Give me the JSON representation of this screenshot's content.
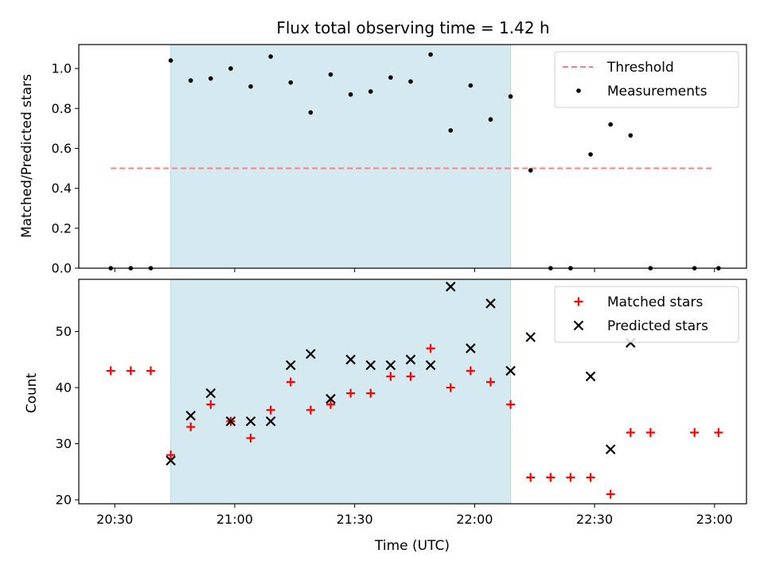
{
  "chart_data": [
    {
      "type": "scatter",
      "title": "Flux total observing time = 1.42 h",
      "xlabel": "",
      "ylabel": "Matched/Predicted stars",
      "ylim": [
        0,
        1.12
      ],
      "yticks": [
        0.0,
        0.2,
        0.4,
        0.6,
        0.8,
        1.0
      ],
      "ytick_labels": [
        "0.0",
        "0.2",
        "0.4",
        "0.6",
        "0.8",
        "1.0"
      ],
      "xlim": [
        "20:21",
        "23:08"
      ],
      "legend_position": "top-right",
      "shaded_interval": {
        "start": "20:44",
        "end": "22:09",
        "color": "#d4eaf0"
      },
      "series": [
        {
          "name": "Threshold",
          "kind": "line",
          "style": "dashed",
          "color": "#ff7f7f",
          "x": [
            "20:29",
            "23:00"
          ],
          "y": [
            0.5,
            0.5
          ]
        },
        {
          "name": "Measurements",
          "kind": "scatter",
          "marker": "dot",
          "color": "#000000",
          "x": [
            "20:29",
            "20:34",
            "20:39",
            "20:44",
            "20:49",
            "20:54",
            "20:59",
            "21:04",
            "21:09",
            "21:14",
            "21:19",
            "21:24",
            "21:29",
            "21:34",
            "21:39",
            "21:44",
            "21:49",
            "21:54",
            "21:59",
            "22:04",
            "22:09",
            "22:14",
            "22:19",
            "22:24",
            "22:29",
            "22:34",
            "22:39",
            "22:44",
            "22:55",
            "23:01"
          ],
          "y": [
            0.0,
            0.0,
            0.0,
            1.04,
            0.94,
            0.95,
            1.0,
            0.91,
            1.06,
            0.93,
            0.78,
            0.97,
            0.87,
            0.885,
            0.955,
            0.935,
            1.07,
            0.69,
            0.915,
            0.745,
            0.86,
            0.49,
            0.0,
            0.0,
            0.57,
            0.72,
            0.665,
            0.0,
            0.0,
            0.0
          ]
        }
      ]
    },
    {
      "type": "scatter",
      "title": "",
      "xlabel": "Time (UTC)",
      "ylabel": "Count",
      "ylim": [
        19.3,
        59.3
      ],
      "yticks": [
        20,
        30,
        40,
        50
      ],
      "ytick_labels": [
        "20",
        "30",
        "40",
        "50"
      ],
      "xlim": [
        "20:21",
        "23:08"
      ],
      "xticks": [
        "20:30",
        "21:00",
        "21:30",
        "22:00",
        "22:30",
        "23:00"
      ],
      "xtick_labels": [
        "20:30",
        "21:00",
        "21:30",
        "22:00",
        "22:30",
        "23:00"
      ],
      "legend_position": "top-right",
      "shaded_interval": {
        "start": "20:44",
        "end": "22:09",
        "color": "#d4eaf0"
      },
      "series": [
        {
          "name": "Matched stars",
          "kind": "scatter",
          "marker": "plus",
          "color": "#ff0000",
          "x": [
            "20:29",
            "20:34",
            "20:39",
            "20:44",
            "20:49",
            "20:54",
            "20:59",
            "21:04",
            "21:09",
            "21:14",
            "21:19",
            "21:24",
            "21:29",
            "21:34",
            "21:39",
            "21:44",
            "21:49",
            "21:54",
            "21:59",
            "22:04",
            "22:09",
            "22:14",
            "22:19",
            "22:24",
            "22:29",
            "22:34",
            "22:39",
            "22:44",
            "22:55",
            "23:01"
          ],
          "y": [
            43,
            43,
            43,
            28,
            33,
            37,
            34,
            31,
            36,
            41,
            36,
            37,
            39,
            39,
            42,
            42,
            47,
            40,
            43,
            41,
            37,
            24,
            24,
            24,
            24,
            21,
            32,
            32,
            32,
            32
          ]
        },
        {
          "name": "Predicted stars",
          "kind": "scatter",
          "marker": "x",
          "color": "#000000",
          "x": [
            "20:44",
            "20:49",
            "20:54",
            "20:59",
            "21:04",
            "21:09",
            "21:14",
            "21:19",
            "21:24",
            "21:29",
            "21:34",
            "21:39",
            "21:44",
            "21:49",
            "21:54",
            "21:59",
            "22:04",
            "22:09",
            "22:14",
            "22:29",
            "22:34",
            "22:39"
          ],
          "y": [
            27,
            35,
            39,
            34,
            34,
            34,
            44,
            46,
            38,
            45,
            44,
            44,
            45,
            44,
            58,
            47,
            55,
            43,
            49,
            42,
            29,
            48
          ]
        }
      ]
    }
  ]
}
